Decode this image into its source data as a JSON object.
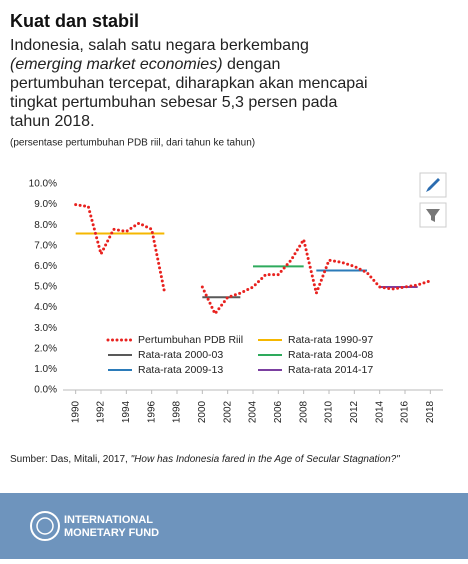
{
  "chart_data": {
    "type": "line",
    "title": "Kuat dan stabil",
    "subtitle": [
      "Indonesia, salah satu negara berkembang",
      "(emerging market economies)",
      "dengan",
      "pertumbuhan tercepat, diharapkan akan mencapai",
      "tingkat pertumbuhan sebesar 5,3 persen pada",
      "tahun 2018."
    ],
    "note": "(persentase pertumbuhan PDB riil, dari tahun ke tahun)",
    "x": [
      1990,
      1991,
      1992,
      1993,
      1994,
      1995,
      1996,
      1997,
      1998,
      1999,
      2000,
      2001,
      2002,
      2003,
      2004,
      2005,
      2006,
      2007,
      2008,
      2009,
      2010,
      2011,
      2012,
      2013,
      2014,
      2015,
      2016,
      2017,
      2018
    ],
    "series": [
      {
        "name": "Pertumbuhan PDB Riil",
        "color": "#e8221f",
        "values": [
          9.0,
          8.9,
          6.6,
          7.8,
          7.7,
          8.1,
          7.8,
          4.8,
          null,
          null,
          5.0,
          3.7,
          4.5,
          4.7,
          5.0,
          5.6,
          5.6,
          6.3,
          7.3,
          4.7,
          6.3,
          6.2,
          6.0,
          5.7,
          5.0,
          4.9,
          5.0,
          5.1,
          5.3
        ]
      }
    ],
    "averages": [
      {
        "name": "Rata-rata 1990-97",
        "color": "#f5b700",
        "start": 1990,
        "end": 1997,
        "value": 7.6
      },
      {
        "name": "Rata-rata 2000-03",
        "color": "#595959",
        "start": 2000,
        "end": 2003,
        "value": 4.5
      },
      {
        "name": "Rata-rata 2004-08",
        "color": "#2eaa5c",
        "start": 2004,
        "end": 2008,
        "value": 6.0
      },
      {
        "name": "Rata-rata 2009-13",
        "color": "#2b7bb9",
        "start": 2009,
        "end": 2013,
        "value": 5.8
      },
      {
        "name": "Rata-rata 2014-17",
        "color": "#7b3fa0",
        "start": 2014,
        "end": 2017,
        "value": 5.0
      }
    ],
    "xlim": [
      1989,
      2019
    ],
    "xticks": [
      1990,
      1992,
      1994,
      1996,
      1998,
      2000,
      2002,
      2004,
      2006,
      2008,
      2010,
      2012,
      2014,
      2016,
      2018
    ],
    "ylim": [
      0,
      10
    ],
    "yticks": [
      {
        "value": 0,
        "label": "0.0%"
      },
      {
        "value": 1,
        "label": "1.0%"
      },
      {
        "value": 2,
        "label": "2.0%"
      },
      {
        "value": 3,
        "label": "3.0%"
      },
      {
        "value": 4,
        "label": "4.0%"
      },
      {
        "value": 5,
        "label": "5.0%"
      },
      {
        "value": 6,
        "label": "6.0%"
      },
      {
        "value": 7,
        "label": "7.0%"
      },
      {
        "value": 8,
        "label": "8.0%"
      },
      {
        "value": 9,
        "label": "9.0%"
      },
      {
        "value": 10,
        "label": "10.0%"
      }
    ],
    "source": "Sumber: Das, Mitali, 2017,",
    "source_title": "\"How has Indonesia fared in the Age of Secular Stagnation?\""
  },
  "footer": {
    "line1": "INTERNATIONAL",
    "line2": "MONETARY FUND"
  }
}
